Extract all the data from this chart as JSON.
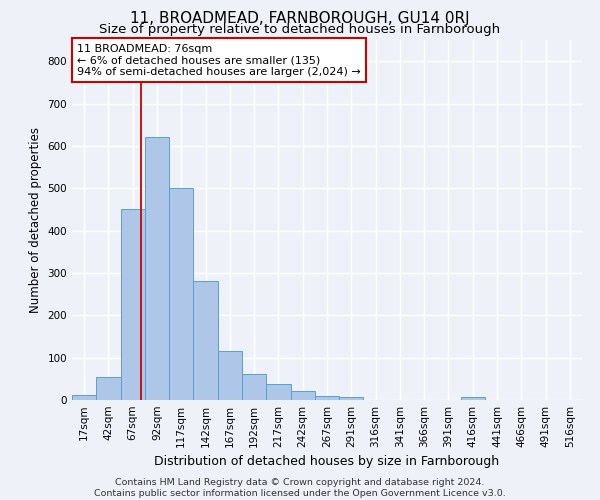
{
  "title": "11, BROADMEAD, FARNBOROUGH, GU14 0RJ",
  "subtitle": "Size of property relative to detached houses in Farnborough",
  "xlabel": "Distribution of detached houses by size in Farnborough",
  "ylabel": "Number of detached properties",
  "footer_line1": "Contains HM Land Registry data © Crown copyright and database right 2024.",
  "footer_line2": "Contains public sector information licensed under the Open Government Licence v3.0.",
  "bin_labels": [
    "17sqm",
    "42sqm",
    "67sqm",
    "92sqm",
    "117sqm",
    "142sqm",
    "167sqm",
    "192sqm",
    "217sqm",
    "242sqm",
    "267sqm",
    "291sqm",
    "316sqm",
    "341sqm",
    "366sqm",
    "391sqm",
    "416sqm",
    "441sqm",
    "466sqm",
    "491sqm",
    "516sqm"
  ],
  "bar_values": [
    12,
    55,
    450,
    620,
    500,
    280,
    115,
    62,
    37,
    22,
    10,
    8,
    0,
    0,
    0,
    0,
    8,
    0,
    0,
    0,
    0
  ],
  "bar_color": "#aec6e8",
  "bar_edge_color": "#5a9fd4",
  "annotation_box_text_line1": "11 BROADMEAD: 76sqm",
  "annotation_box_text_line2": "← 6% of detached houses are smaller (135)",
  "annotation_box_text_line3": "94% of semi-detached houses are larger (2,024) →",
  "annotation_box_color": "white",
  "annotation_box_edge_color": "#cc0000",
  "annotation_line_color": "#cc0000",
  "red_line_x": 2.36,
  "ylim": [
    0,
    850
  ],
  "yticks": [
    0,
    100,
    200,
    300,
    400,
    500,
    600,
    700,
    800
  ],
  "background_color": "#eef2f8",
  "grid_color": "white",
  "title_fontsize": 11,
  "subtitle_fontsize": 9.5,
  "xlabel_fontsize": 9,
  "ylabel_fontsize": 8.5,
  "tick_fontsize": 7.5,
  "footer_fontsize": 6.8,
  "annotation_fontsize": 8
}
